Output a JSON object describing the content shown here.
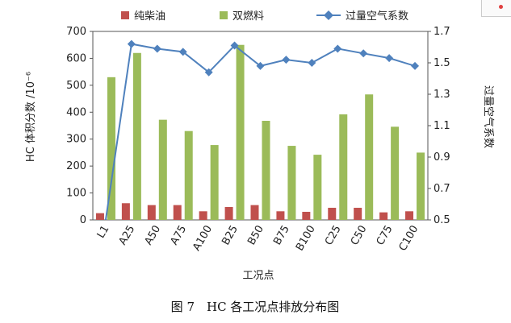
{
  "chart_data": {
    "type": "bar",
    "xlabel": "工况点",
    "ylabel": "HC 体积分数 /10⁻⁶",
    "ylabel_right": "过量空气系数",
    "caption": "图 7　HC 各工况点排放分布图",
    "categories": [
      "L1",
      "A25",
      "A50",
      "A75",
      "A100",
      "B25",
      "B50",
      "B75",
      "B100",
      "C25",
      "C50",
      "C75",
      "C100"
    ],
    "ylim": [
      0,
      700
    ],
    "yticks": [
      0,
      100,
      200,
      300,
      400,
      500,
      600,
      700
    ],
    "ylim_right": [
      0.5,
      1.7
    ],
    "yticks_right": [
      "0.5",
      "0.7",
      "0.9",
      "1.1",
      "1.3",
      "1.5",
      "1.7"
    ],
    "legend_position": "top",
    "series": [
      {
        "name": "纯柴油",
        "kind": "bar",
        "color": "#c0504d",
        "values": [
          25,
          62,
          55,
          55,
          32,
          48,
          55,
          32,
          30,
          45,
          45,
          28,
          32
        ]
      },
      {
        "name": "双燃料",
        "kind": "bar",
        "color": "#9bbb59",
        "values": [
          530,
          620,
          372,
          330,
          278,
          650,
          368,
          275,
          242,
          392,
          466,
          346,
          250
        ]
      },
      {
        "name": "过量空气系数",
        "kind": "line",
        "axis": "right",
        "color": "#4f81bd",
        "marker": "diamond",
        "values": [
          0.5,
          1.62,
          1.59,
          1.57,
          1.44,
          1.61,
          1.48,
          1.52,
          1.5,
          1.59,
          1.56,
          1.53,
          1.48
        ]
      }
    ]
  }
}
